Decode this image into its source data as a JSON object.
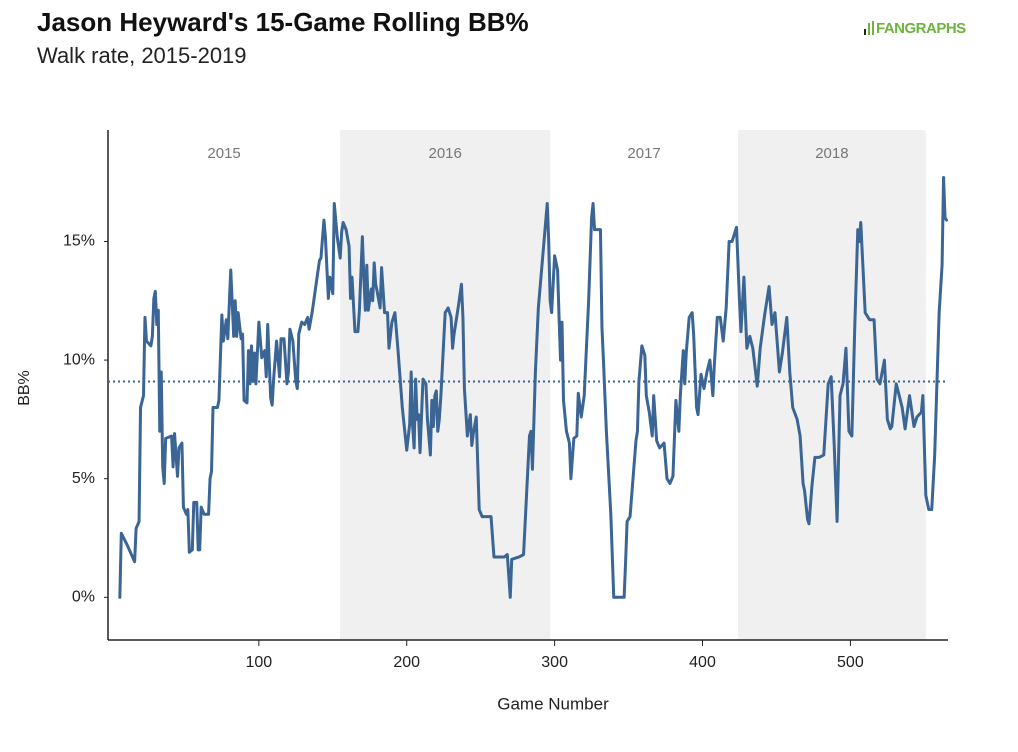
{
  "chart_data": {
    "type": "line",
    "title": "Jason Heyward's 15-Game Rolling BB%",
    "subtitle": "Walk rate, 2015-2019",
    "logo": "FANGRAPHS",
    "x_label": "Game Number",
    "y_label": "BB%",
    "color": "#3a6594",
    "xlim": [
      -2,
      566
    ],
    "xticks": [
      100,
      200,
      300,
      400,
      500
    ],
    "ylim": [
      -1.8,
      19.7
    ],
    "yticks": [
      {
        "value": 0,
        "label": "0%"
      },
      {
        "value": 5,
        "label": "5%"
      },
      {
        "value": 10,
        "label": "10%"
      },
      {
        "value": 15,
        "label": "15%"
      }
    ],
    "reference_line": 9.1,
    "seasons": [
      {
        "label": "2015",
        "start": -2,
        "end": 155,
        "shaded": false
      },
      {
        "label": "2016",
        "start": 155,
        "end": 297,
        "shaded": true
      },
      {
        "label": "2017",
        "start": 297,
        "end": 424,
        "shaded": false
      },
      {
        "label": "2018",
        "start": 424,
        "end": 551,
        "shaded": true
      }
    ],
    "x": [
      6,
      7,
      11,
      16,
      17,
      19,
      20,
      22,
      23,
      24,
      27,
      28,
      29,
      30,
      31,
      32,
      33,
      34,
      35,
      36,
      37,
      41,
      42,
      43,
      45,
      46,
      48,
      49,
      51,
      52,
      53,
      55,
      56,
      58,
      59,
      60,
      61,
      63,
      66,
      67,
      68,
      69,
      72,
      73,
      75,
      76,
      78,
      79,
      81,
      83,
      84,
      85,
      86,
      88,
      89,
      90,
      92,
      93,
      94,
      95,
      96,
      97,
      98,
      100,
      102,
      104,
      105,
      106,
      108,
      109,
      110,
      112,
      114,
      115,
      117,
      119,
      120,
      121,
      123,
      125,
      126,
      127,
      129,
      131,
      133,
      134,
      136,
      141,
      142,
      144,
      145,
      147,
      148,
      150,
      151,
      153,
      155,
      156,
      157,
      159,
      161,
      162,
      163,
      165,
      167,
      168,
      170,
      171,
      172,
      173,
      174,
      176,
      177,
      178,
      179,
      180,
      182,
      183,
      185,
      187,
      188,
      190,
      192,
      194,
      197,
      200,
      202,
      203,
      204,
      205,
      206,
      207,
      208,
      209,
      211,
      213,
      214,
      216,
      217,
      218,
      219,
      220,
      221,
      222,
      223,
      226,
      228,
      230,
      231,
      232,
      235,
      237,
      238,
      239,
      241,
      242,
      243,
      244,
      245,
      247,
      249,
      251,
      257,
      259,
      266,
      268,
      270,
      271,
      276,
      279,
      283,
      284,
      285,
      287,
      289,
      292,
      295,
      296,
      297,
      298,
      300,
      302,
      303,
      304,
      305,
      306,
      308,
      310,
      311,
      313,
      315,
      316,
      318,
      320,
      323,
      325,
      326,
      327,
      331,
      332,
      333,
      335,
      338,
      340,
      347,
      348,
      349,
      351,
      353,
      355,
      356,
      357,
      359,
      361,
      362,
      364,
      366,
      367,
      369,
      371,
      374,
      376,
      378,
      380,
      382,
      384,
      385,
      387,
      388,
      389,
      391,
      393,
      394,
      396,
      397,
      399,
      401,
      403,
      405,
      407,
      408,
      410,
      412,
      414,
      416,
      418,
      420,
      423,
      425,
      426,
      428,
      430,
      432,
      434,
      437,
      439,
      442,
      445,
      447,
      449,
      452,
      454,
      457,
      459,
      461,
      464,
      466,
      468,
      469,
      471,
      472,
      474,
      476,
      479,
      482,
      485,
      487,
      489,
      491,
      493,
      495,
      497,
      499,
      501,
      503,
      505,
      506,
      507,
      510,
      513,
      516,
      518,
      520,
      523,
      525,
      527,
      528,
      531,
      533,
      535,
      537,
      540,
      543,
      545,
      548,
      549,
      551,
      553,
      555,
      557,
      560,
      562,
      563,
      564,
      565
    ],
    "values": [
      0,
      2.7,
      2.2,
      1.5,
      2.9,
      3.2,
      8.0,
      8.5,
      11.8,
      10.8,
      10.6,
      11.0,
      12.6,
      12.9,
      11.5,
      12.1,
      7.0,
      9.5,
      5.5,
      4.8,
      6.7,
      6.8,
      5.5,
      6.9,
      5.1,
      6.3,
      6.5,
      3.8,
      3.5,
      3.7,
      1.9,
      2.0,
      4.0,
      4.0,
      2.0,
      2.0,
      3.8,
      3.5,
      3.5,
      5.0,
      5.3,
      8.0,
      8.0,
      8.3,
      11.9,
      10.8,
      11.7,
      10.9,
      13.8,
      11.0,
      12.5,
      11.0,
      12.0,
      10.9,
      11.1,
      8.3,
      8.2,
      10.4,
      9.0,
      10.6,
      9.1,
      10.3,
      9.0,
      11.6,
      10.1,
      10.4,
      9.3,
      11.5,
      8.4,
      8.1,
      9.2,
      10.8,
      9.3,
      10.9,
      10.9,
      9.0,
      9.5,
      11.3,
      10.8,
      9.1,
      8.8,
      11.1,
      11.6,
      11.5,
      11.8,
      11.3,
      12.0,
      14.2,
      14.3,
      15.9,
      15.2,
      12.6,
      13.5,
      12.8,
      16.6,
      15.2,
      14.3,
      15.4,
      15.8,
      15.5,
      14.8,
      12.6,
      13.5,
      11.2,
      11.2,
      12.1,
      15.2,
      13.5,
      12.1,
      14.0,
      12.1,
      13.0,
      12.5,
      14.1,
      13.2,
      12.9,
      12.2,
      13.9,
      12.0,
      12.0,
      10.5,
      11.6,
      12.0,
      10.5,
      8.0,
      6.2,
      7.3,
      9.5,
      7.2,
      6.3,
      9.2,
      7.5,
      7.7,
      6.1,
      9.2,
      9.0,
      7.5,
      6.0,
      8.3,
      7.2,
      8.5,
      8.7,
      7.0,
      7.5,
      8.4,
      12.0,
      12.2,
      11.8,
      10.5,
      11.1,
      12.3,
      13.2,
      11.8,
      8.8,
      6.8,
      7.3,
      7.7,
      6.4,
      6.9,
      7.6,
      3.7,
      3.4,
      3.4,
      1.7,
      1.7,
      1.8,
      0,
      1.6,
      1.7,
      1.8,
      6.8,
      7.0,
      5.4,
      9.5,
      12.2,
      14.4,
      16.6,
      15.0,
      12.5,
      12.0,
      14.4,
      13.8,
      11.8,
      10.0,
      11.6,
      8.3,
      7.0,
      6.5,
      5.0,
      6.7,
      6.8,
      8.6,
      7.6,
      8.5,
      12.5,
      16.0,
      16.6,
      15.5,
      15.5,
      11.4,
      10.0,
      7.0,
      3.5,
      0,
      0,
      1.5,
      3.2,
      3.4,
      5.0,
      6.6,
      7.0,
      9.1,
      10.6,
      10.2,
      8.5,
      7.8,
      6.8,
      8.5,
      6.6,
      6.3,
      6.5,
      5.0,
      4.8,
      5.1,
      8.3,
      7.0,
      8.5,
      10.4,
      9.0,
      10.3,
      11.8,
      12.0,
      11.1,
      8.0,
      7.7,
      9.4,
      8.8,
      9.5,
      10.0,
      8.5,
      9.8,
      11.8,
      11.8,
      10.8,
      12.2,
      15.0,
      15.0,
      15.6,
      12.5,
      11.2,
      13.5,
      10.5,
      11.0,
      10.5,
      8.9,
      10.5,
      11.9,
      13.1,
      11.5,
      12.0,
      9.5,
      10.3,
      11.8,
      9.5,
      8.0,
      7.5,
      6.8,
      4.8,
      4.5,
      3.3,
      3.1,
      4.7,
      5.9,
      5.9,
      6.0,
      9.0,
      9.3,
      6.5,
      3.2,
      8.5,
      9.0,
      10.5,
      7.0,
      6.8,
      11.5,
      15.5,
      15.0,
      15.8,
      12.0,
      11.7,
      11.7,
      9.2,
      9.0,
      10.0,
      7.5,
      7.1,
      7.2,
      9.0,
      8.5,
      8.0,
      7.1,
      8.5,
      7.2,
      7.6,
      7.8,
      8.5,
      4.3,
      3.7,
      3.7,
      6.0,
      12.0,
      14.0,
      17.7,
      16.0,
      15.9
    ]
  }
}
